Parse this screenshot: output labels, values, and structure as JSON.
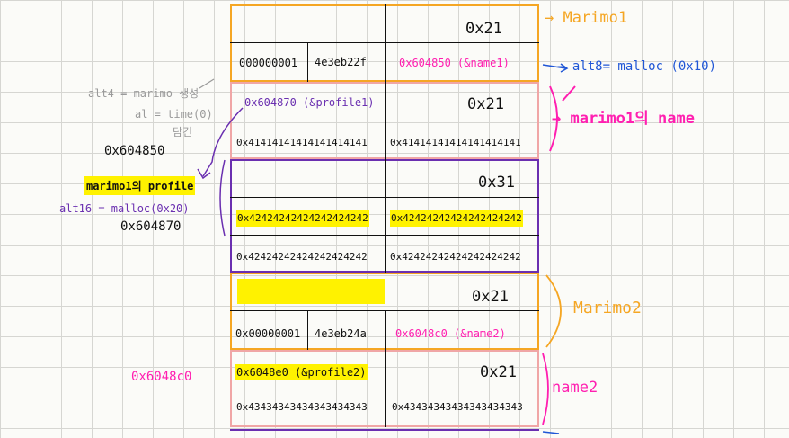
{
  "chunks": [
    {
      "header_size": "0x21",
      "data_left": "000000001",
      "data_mid": "4e3eb22f",
      "data_right": "0x604850 (&name1)"
    },
    {
      "row1_left": "0x604870 (&profile1)",
      "row1_right": "0x21",
      "row2_left": "0x41414141414141414141",
      "row2_right": "0x41414141414141414141"
    },
    {
      "header_size": "0x31",
      "row1_left": "0x42424242424242424242",
      "row1_right": "0x42424242424242424242",
      "row2_left": "0x42424242424242424242",
      "row2_right": "0x42424242424242424242"
    },
    {
      "header_size": "0x21",
      "data_left": "0x00000001",
      "data_mid": "4e3eb24a",
      "data_right": "0x6048c0 (&name2)"
    },
    {
      "row1_left": "0x6048e0 (&profile2)",
      "row1_right": "0x21",
      "row2_left": "0x43434343434343434343",
      "row2_right": "0x43434343434343434343"
    }
  ],
  "labels": {
    "marimo1": "→ Marimo1",
    "alt8": "→ alt8= malloc (0x10)",
    "marimo1_name": "→ marimo1의 name",
    "alt4": "alt4 = marimo 생성",
    "al_time": "al = time(0)",
    "dam": "담긴",
    "addr_604850": "0x604850",
    "marimo1_profile": "marimo1의 profile",
    "alt16": "alt16 = malloc(0x20)",
    "addr_604870": "0x604870",
    "marimo2": "Marimo2",
    "addr_6048c0": "0x6048c0",
    "name2": "name2"
  },
  "colors": {
    "orange": "#f5a623",
    "pink": "#ff1fb0",
    "purple": "#6a2fb0",
    "blue": "#1f56d6",
    "gray": "#9a9a9a",
    "highlight": "#fff200",
    "pink_box": "#f0a6a6"
  }
}
